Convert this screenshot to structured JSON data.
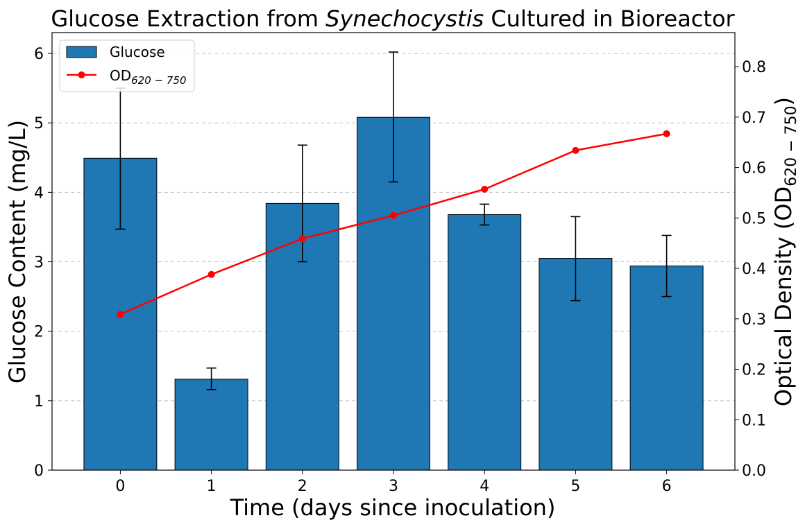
{
  "chart_data": {
    "type": "bar",
    "title": {
      "prefix": "Glucose Extraction from ",
      "italic": "Synechocystis",
      "suffix": " Cultured in Bioreactor"
    },
    "xlabel": "Time (days since inoculation)",
    "ylabel": "Glucose Content (mg/L)",
    "y2label": {
      "main": "Optical Density (OD",
      "sub": "620 − 750",
      "close": ")"
    },
    "categories": [
      "0",
      "1",
      "2",
      "3",
      "4",
      "5",
      "6"
    ],
    "x": [
      0,
      1,
      2,
      3,
      4,
      5,
      6
    ],
    "ylim": [
      0,
      6.3
    ],
    "y2lim": [
      0,
      0.8675
    ],
    "xlim": [
      -0.75,
      6.75
    ],
    "yticks": [
      0,
      1,
      2,
      3,
      4,
      5,
      6
    ],
    "y2ticks": [
      0.0,
      0.1,
      0.2,
      0.3,
      0.4,
      0.5,
      0.6,
      0.7,
      0.8
    ],
    "grid": "y dashed",
    "legend_position": "top-left",
    "series": [
      {
        "name": "Glucose",
        "kind": "bar",
        "axis": "left",
        "color": "#1f77b4",
        "values": [
          4.49,
          1.31,
          3.84,
          5.08,
          3.68,
          3.05,
          2.94
        ],
        "error_low": [
          3.47,
          1.16,
          3.0,
          4.15,
          3.53,
          2.44,
          2.5
        ],
        "error_high": [
          5.5,
          1.47,
          4.68,
          6.02,
          3.83,
          3.65,
          3.38
        ]
      },
      {
        "name": "OD",
        "name_sub": "620 − 750",
        "kind": "line",
        "axis": "right",
        "color": "#ff0000",
        "values": [
          0.309,
          0.388,
          0.459,
          0.505,
          0.557,
          0.634,
          0.667
        ]
      }
    ]
  }
}
